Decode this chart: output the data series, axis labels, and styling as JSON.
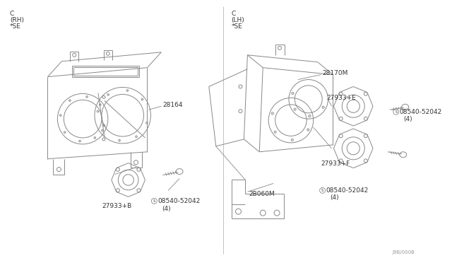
{
  "bg_color": "#ffffff",
  "line_color": "#888888",
  "text_color": "#333333",
  "diagram_code": "J9B/000B",
  "left_label": [
    "C",
    "(RH)",
    "*SE"
  ],
  "right_label": [
    "C",
    "(LH)",
    "*SE"
  ],
  "left_parts": {
    "main_unit": "28164",
    "speaker": "27933+B",
    "bolt": "08540-52042",
    "bolt_qty": "(4)"
  },
  "right_parts": {
    "main_unit": "28170M",
    "bracket": "2B060M",
    "speaker_e": "27933+E",
    "speaker_f": "27933+F",
    "bolt": "08540-52042",
    "bolt_qty": "(4)"
  }
}
